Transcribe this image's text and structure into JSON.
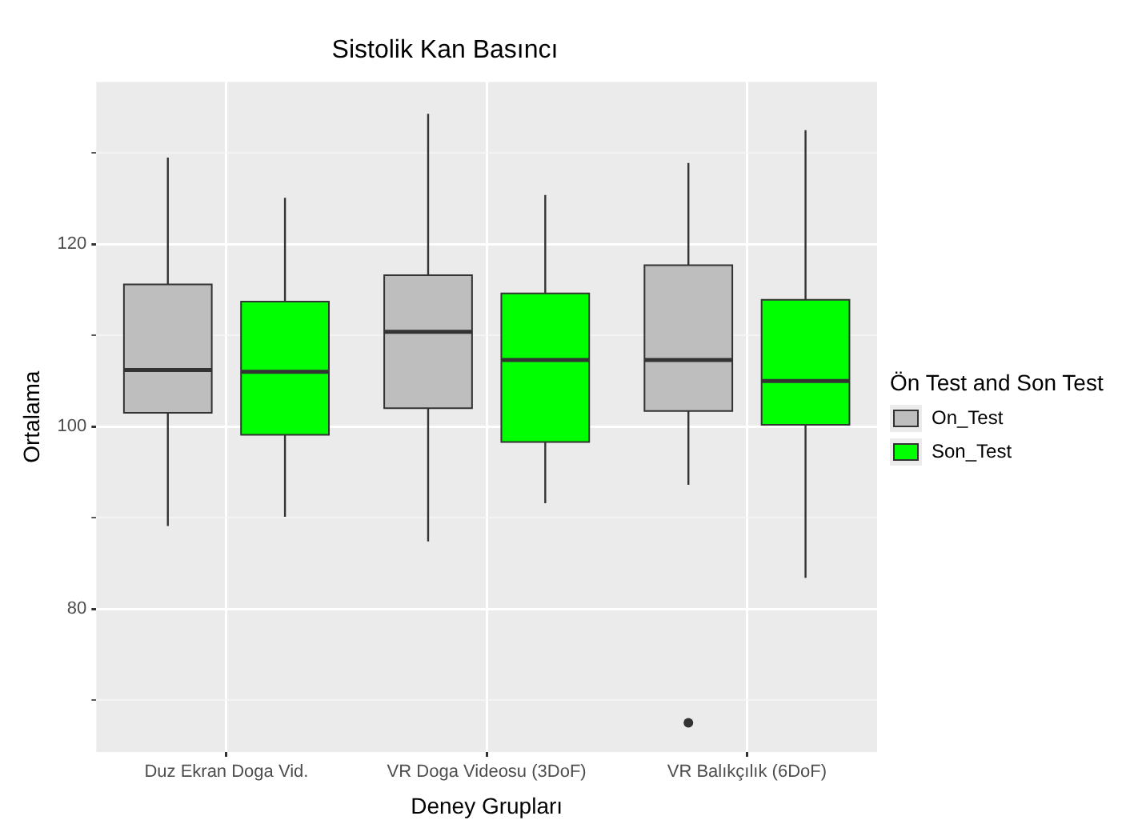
{
  "chart_data": {
    "type": "box",
    "title": "Sistolik Kan Basıncı",
    "xlabel": "Deney Grupları",
    "ylabel": "Ortalama",
    "legend_title": "Ön Test and Son Test",
    "categories": [
      "Duz Ekran Doga Vid.",
      "VR Doga Videosu (3DoF)",
      "VR Balıkçılık (6DoF)"
    ],
    "series": [
      {
        "name": "On_Test",
        "color": "#bebebe",
        "boxes": [
          {
            "low": 89.1,
            "q1": 101.5,
            "median": 106.2,
            "q3": 115.6,
            "high": 129.5
          },
          {
            "low": 87.4,
            "q1": 102.0,
            "median": 110.4,
            "q3": 116.6,
            "high": 134.3
          },
          {
            "low": 93.6,
            "q1": 101.7,
            "median": 107.3,
            "q3": 117.7,
            "high": 128.9,
            "outliers": [
              67.5
            ]
          }
        ]
      },
      {
        "name": "Son_Test",
        "color": "#00ff00",
        "boxes": [
          {
            "low": 90.1,
            "q1": 99.1,
            "median": 106.0,
            "q3": 113.7,
            "high": 125.1
          },
          {
            "low": 91.6,
            "q1": 98.3,
            "median": 107.3,
            "q3": 114.6,
            "high": 125.4
          },
          {
            "low": 83.4,
            "q1": 100.2,
            "median": 105.0,
            "q3": 113.9,
            "high": 132.5
          }
        ]
      }
    ],
    "ylim": [
      64.3,
      137.8
    ],
    "yticks": [
      {
        "value": 70,
        "label": null
      },
      80,
      {
        "value": 90,
        "label": null
      },
      100,
      {
        "value": 110,
        "label": null
      },
      120,
      {
        "value": 130,
        "label": null
      }
    ],
    "grid": true,
    "legend": "right"
  }
}
